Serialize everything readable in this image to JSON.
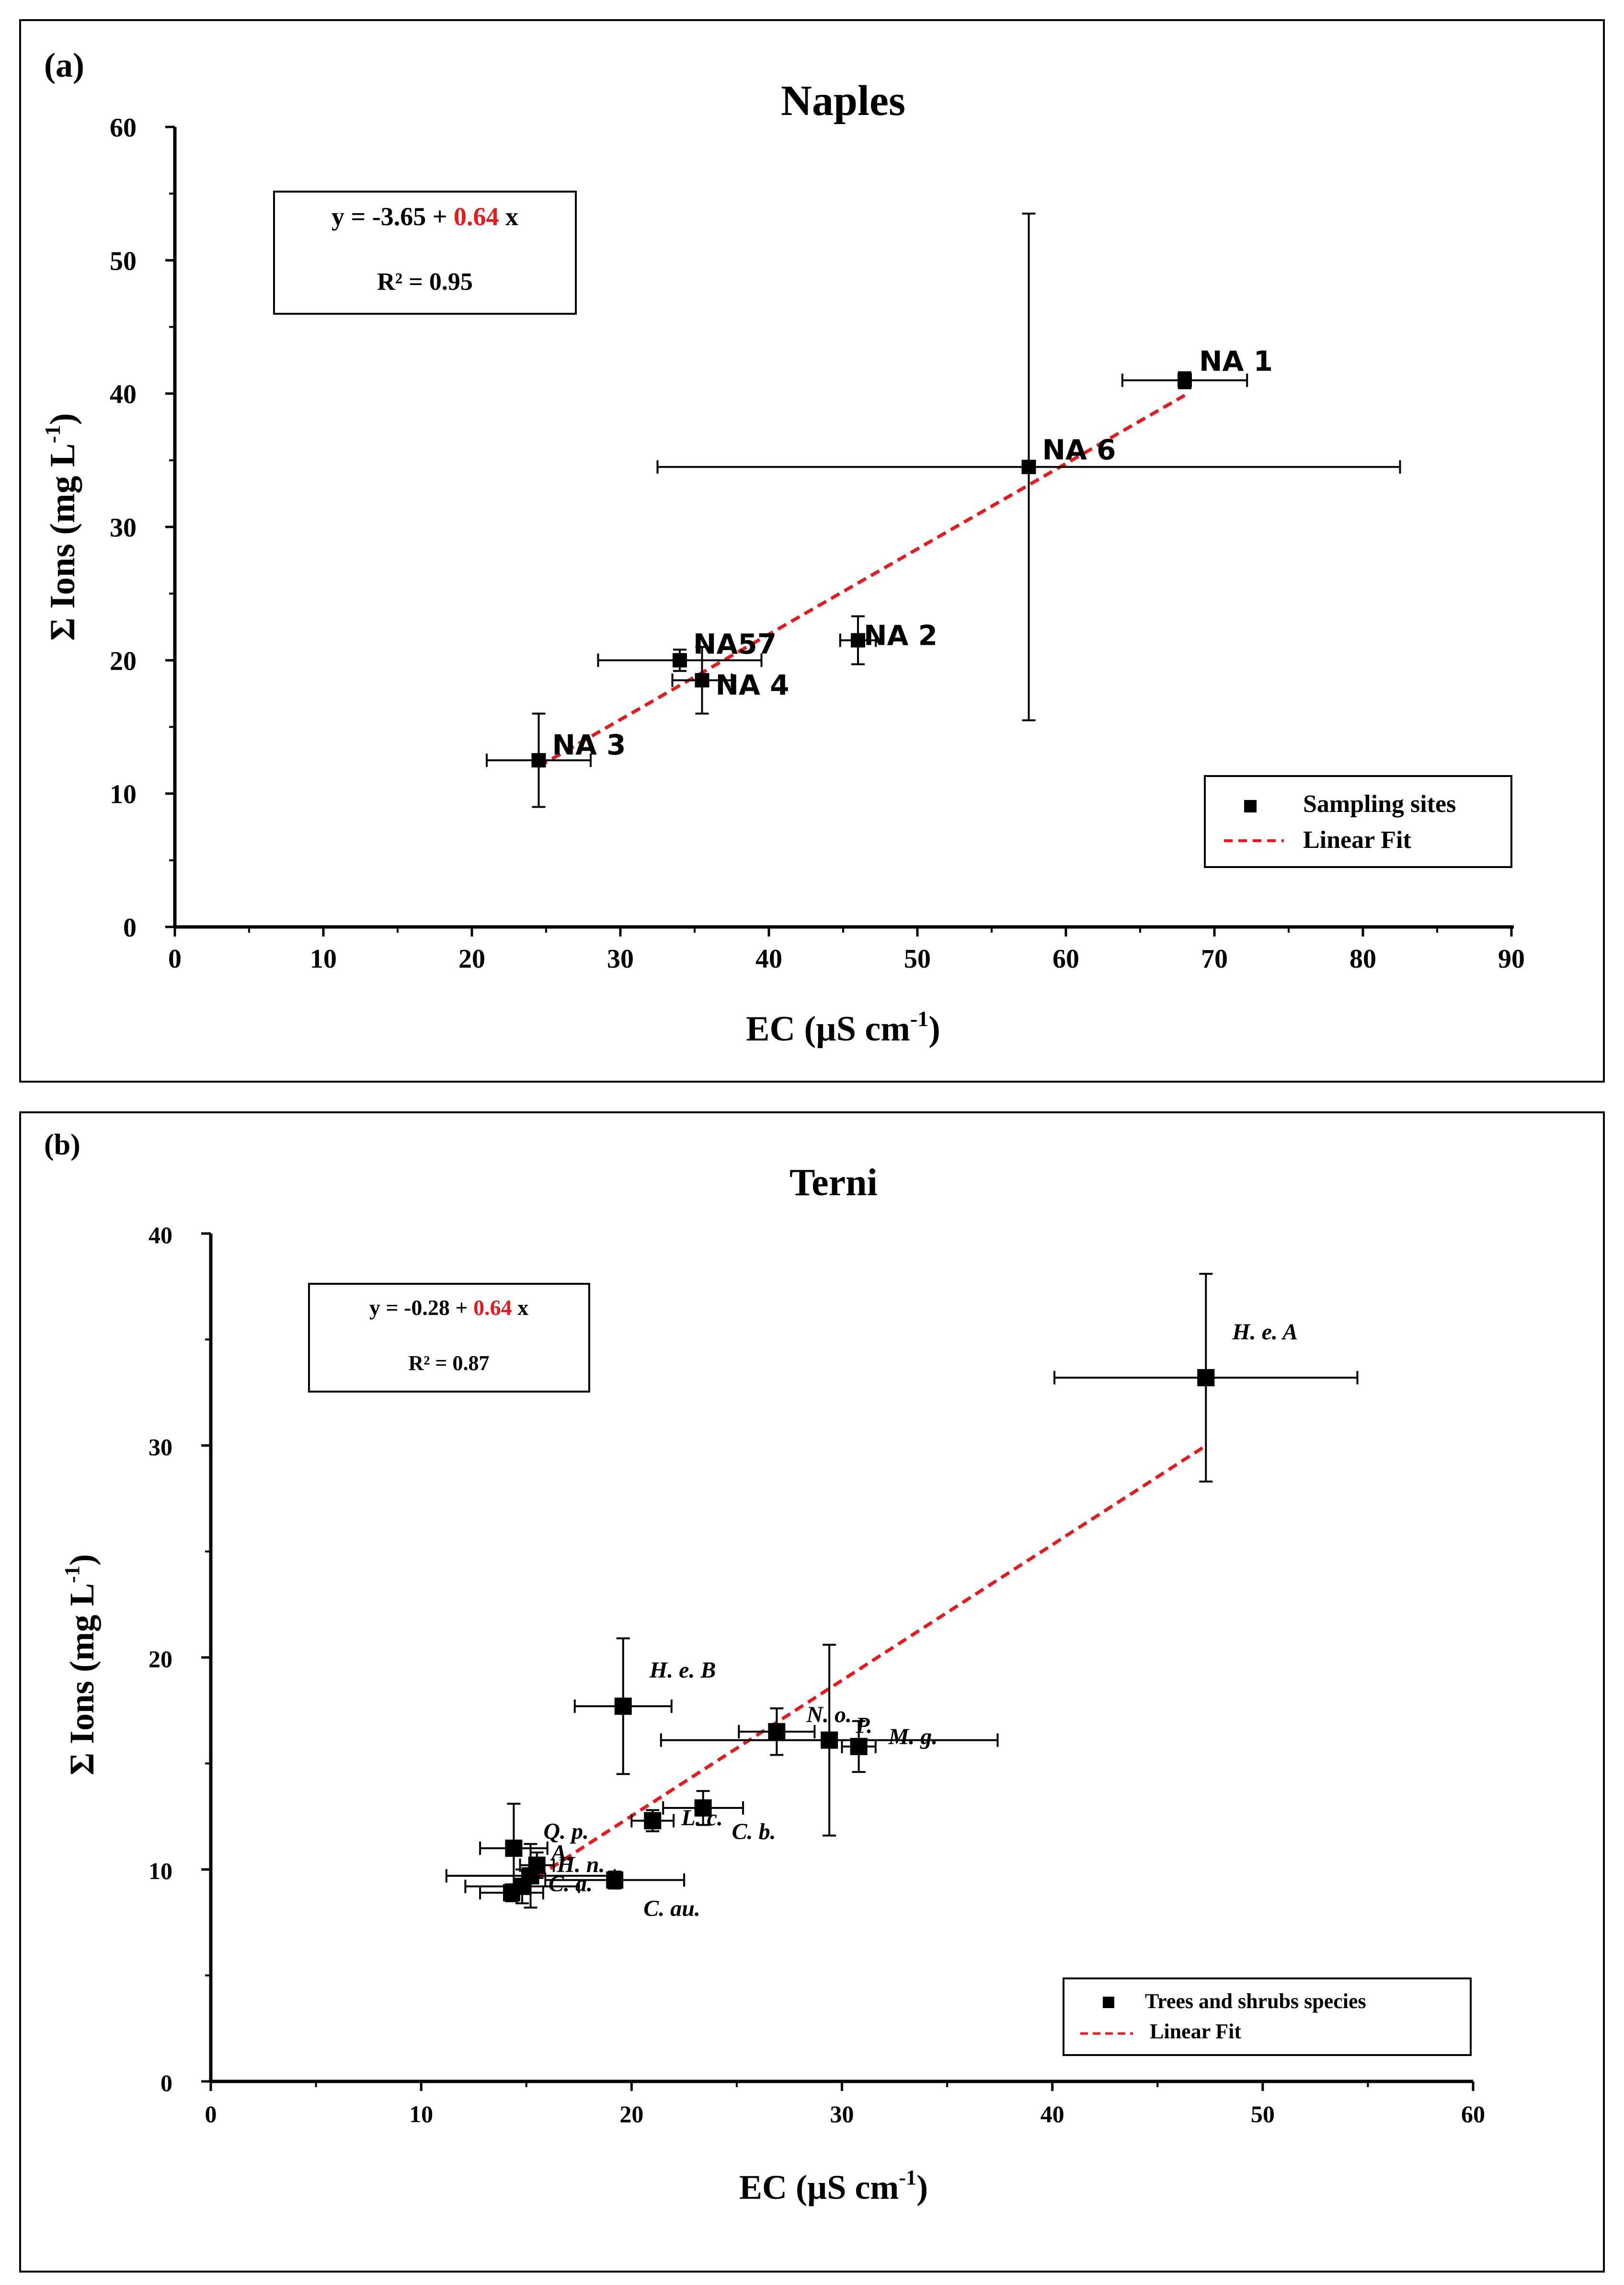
{
  "chart_data": [
    {
      "panel": "(a)",
      "type": "scatter",
      "title": "Naples",
      "xlabel": "EC (µS cm",
      "xlabel_sup": "-1",
      "xlabel_tail": ")",
      "ylabel": "Σ Ions (mg L",
      "ylabel_sup": "-1",
      "ylabel_tail": ")",
      "xlim": [
        0,
        90
      ],
      "ylim": [
        0,
        60
      ],
      "xticks": [
        "0",
        "10",
        "20",
        "30",
        "40",
        "50",
        "60",
        "70",
        "80",
        "90"
      ],
      "yticks": [
        "0",
        "10",
        "20",
        "30",
        "40",
        "50",
        "60"
      ],
      "points": [
        {
          "label": "NA 1",
          "x": 68,
          "y": 41,
          "xerr": 4.2,
          "yerr": 0.6
        },
        {
          "label": "NA 6",
          "x": 57.5,
          "y": 34.5,
          "xerr": 25,
          "yerr": 19
        },
        {
          "label": "NA 2",
          "x": 46,
          "y": 21.5,
          "xerr": 1.2,
          "yerr": 1.8
        },
        {
          "label": "NA57",
          "x": 34,
          "y": 20,
          "xerr": 5.5,
          "yerr": 0.8
        },
        {
          "label": "NA 4",
          "x": 35.5,
          "y": 18.5,
          "xerr": 2,
          "yerr": 2.5
        },
        {
          "label": "NA 3",
          "x": 24.5,
          "y": 12.5,
          "xerr": 3.5,
          "yerr": 3.5
        }
      ],
      "fit": {
        "intercept": -3.65,
        "slope": 0.64,
        "x_range": [
          24.5,
          68
        ]
      },
      "equation": {
        "prefix": "y = -3.65 + ",
        "slope": "0.64",
        "suffix": " x",
        "r2_label": "R² = 0.95"
      },
      "legend": {
        "position": "bottom-right",
        "items": [
          "Sampling sites",
          "Linear Fit"
        ]
      },
      "colors": {
        "fit": "#e8191c",
        "slope_text": "#e8191c",
        "markers": "#000000"
      }
    },
    {
      "panel": "(b)",
      "type": "scatter",
      "title": "Terni",
      "xlabel": "EC (µS cm",
      "xlabel_sup": "-1",
      "xlabel_tail": ")",
      "ylabel": "Σ Ions (mg L",
      "ylabel_sup": "-1",
      "ylabel_tail": ")",
      "xlim": [
        0,
        60
      ],
      "ylim": [
        0,
        40
      ],
      "xticks": [
        "0",
        "10",
        "20",
        "30",
        "40",
        "50",
        "60"
      ],
      "yticks": [
        "0",
        "10",
        "20",
        "30",
        "40"
      ],
      "points": [
        {
          "label": "H. e. A",
          "x": 47.3,
          "y": 33.2,
          "xerr": 7.2,
          "yerr": 4.9
        },
        {
          "label": "H. e. B",
          "x": 19.6,
          "y": 17.7,
          "xerr": 2.3,
          "yerr": 3.2
        },
        {
          "label": "N. o.",
          "x": 26.9,
          "y": 16.5,
          "xerr": 1.8,
          "yerr": 1.1
        },
        {
          "label": "P.",
          "x": 29.4,
          "y": 16.1,
          "xerr": 8.0,
          "yerr": 4.5
        },
        {
          "label": "M. g.",
          "x": 30.8,
          "y": 15.8,
          "xerr": 0.8,
          "yerr": 1.2
        },
        {
          "label": "C. b.",
          "x": 23.4,
          "y": 12.9,
          "xerr": 1.9,
          "yerr": 0.8
        },
        {
          "label": "L. c.",
          "x": 21.0,
          "y": 12.3,
          "xerr": 1.0,
          "yerr": 0.5
        },
        {
          "label": "C. au.",
          "x": 19.2,
          "y": 9.5,
          "xerr": 3.3,
          "yerr": 0.4
        },
        {
          "label": "Q. p.",
          "x": 14.4,
          "y": 11.0,
          "xerr": 1.6,
          "yerr": 2.1
        },
        {
          "label": "A.",
          "x": 15.5,
          "y": 10.2,
          "xerr": 0.8,
          "yerr": 0.6
        },
        {
          "label": "H. n.",
          "x": 15.2,
          "y": 9.7,
          "xerr": 4.0,
          "yerr": 1.5
        },
        {
          "label": "C. a.",
          "x": 14.8,
          "y": 9.2,
          "xerr": 2.7,
          "yerr": 0.8
        },
        {
          "label": "",
          "x": 14.3,
          "y": 8.9,
          "xerr": 1.5,
          "yerr": 0.4
        }
      ],
      "fit": {
        "intercept": -0.28,
        "slope": 0.64,
        "x_range": [
          14.3,
          47.3
        ]
      },
      "equation": {
        "prefix": "y = -0.28 + ",
        "slope": "0.64",
        "suffix": " x",
        "r2_label": "R² = 0.87"
      },
      "legend": {
        "position": "bottom-right",
        "items": [
          "Trees and shrubs species",
          "Linear Fit"
        ]
      },
      "colors": {
        "fit": "#e8191c",
        "slope_text": "#e8191c",
        "markers": "#000000"
      }
    }
  ]
}
